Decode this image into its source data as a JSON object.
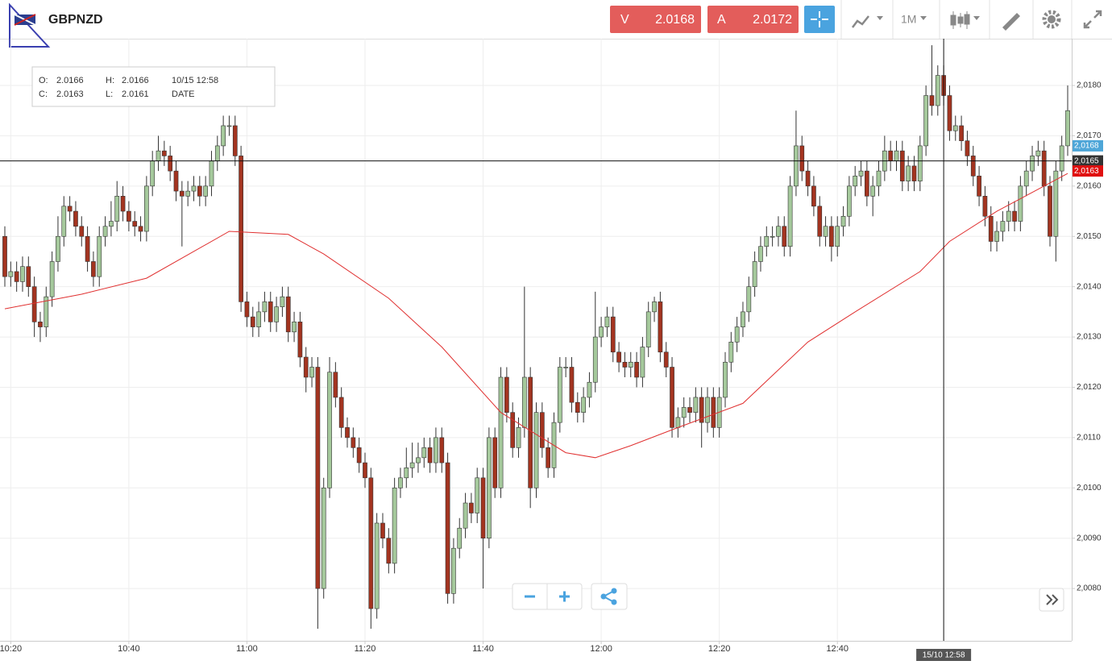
{
  "header": {
    "symbol": "GBPNZD",
    "bid_letter": "V",
    "bid": "2.0168",
    "ask_letter": "A",
    "ask": "2.0172",
    "timeframe": "1M"
  },
  "info": {
    "rows": [
      [
        "O:",
        "2.0166",
        "H:",
        "2.0166",
        "10/15 12:58"
      ],
      [
        "C:",
        "2.0163",
        "L:",
        "2.0161",
        "DATE"
      ]
    ]
  },
  "chart_data": {
    "type": "candlestick",
    "up_color": "#a5c99c",
    "down_color": "#a33420",
    "categories": [
      "10:19",
      "10:20",
      "10:21",
      "10:22",
      "10:23",
      "10:24",
      "10:25",
      "10:26",
      "10:27",
      "10:28",
      "10:29",
      "10:30",
      "10:31",
      "10:32",
      "10:33",
      "10:34",
      "10:35",
      "10:36",
      "10:37",
      "10:38",
      "10:39",
      "10:40",
      "10:41",
      "10:42",
      "10:43",
      "10:44",
      "10:45",
      "10:46",
      "10:47",
      "10:48",
      "10:49",
      "10:50",
      "10:51",
      "10:52",
      "10:53",
      "10:54",
      "10:55",
      "10:56",
      "10:57",
      "10:58",
      "10:59",
      "11:00",
      "11:01",
      "11:02",
      "11:03",
      "11:04",
      "11:05",
      "11:06",
      "11:07",
      "11:08",
      "11:09",
      "11:10",
      "11:11",
      "11:12",
      "11:13",
      "11:14",
      "11:15",
      "11:16",
      "11:17",
      "11:18",
      "11:19",
      "11:20",
      "11:21",
      "11:22",
      "11:23",
      "11:24",
      "11:25",
      "11:26",
      "11:27",
      "11:28",
      "11:29",
      "11:30",
      "11:31",
      "11:32",
      "11:33",
      "11:34",
      "11:35",
      "11:36",
      "11:37",
      "11:38",
      "11:39",
      "11:40",
      "11:41",
      "11:42",
      "11:43",
      "11:44",
      "11:45",
      "11:46",
      "11:47",
      "11:48",
      "11:49",
      "11:50",
      "11:51",
      "11:52",
      "11:53",
      "11:54",
      "11:55",
      "11:56",
      "11:57",
      "11:58",
      "11:59",
      "12:00",
      "12:01",
      "12:02",
      "12:03",
      "12:04",
      "12:05",
      "12:06",
      "12:07",
      "12:08",
      "12:09",
      "12:10",
      "12:11",
      "12:12",
      "12:13",
      "12:14",
      "12:15",
      "12:16",
      "12:17",
      "12:18",
      "12:19",
      "12:20",
      "12:21",
      "12:22",
      "12:23",
      "12:24",
      "12:25",
      "12:26",
      "12:27",
      "12:28",
      "12:29",
      "12:30",
      "12:31",
      "12:32",
      "12:33",
      "12:34",
      "12:35",
      "12:36",
      "12:37",
      "12:38",
      "12:39",
      "12:40",
      "12:41",
      "12:42",
      "12:43",
      "12:44",
      "12:45",
      "12:46",
      "12:47",
      "12:48",
      "12:49",
      "12:50",
      "12:51",
      "12:52",
      "12:53",
      "12:54",
      "12:55",
      "12:56",
      "12:57",
      "12:58",
      "12:59",
      "13:00",
      "13:01",
      "13:02",
      "13:03",
      "13:04",
      "13:05",
      "13:06",
      "13:07",
      "13:08",
      "13:09",
      "13:10",
      "13:11",
      "13:12",
      "13:13",
      "13:14",
      "13:15",
      "13:16",
      "13:17",
      "13:18",
      "13:19"
    ],
    "open": [
      2.015,
      2.0142,
      2.0143,
      2.0141,
      2.0144,
      2.014,
      2.0133,
      2.0132,
      2.0138,
      2.0145,
      2.015,
      2.0156,
      2.0155,
      2.0152,
      2.015,
      2.0145,
      2.0142,
      2.015,
      2.0152,
      2.0153,
      2.0158,
      2.0155,
      2.0153,
      2.0152,
      2.0151,
      2.016,
      2.0165,
      2.0167,
      2.0166,
      2.0163,
      2.0159,
      2.0158,
      2.0159,
      2.016,
      2.0158,
      2.016,
      2.0165,
      2.0168,
      2.0172,
      2.0172,
      2.0166,
      2.0137,
      2.0134,
      2.0132,
      2.0135,
      2.0137,
      2.0133,
      2.0136,
      2.0138,
      2.0131,
      2.0133,
      2.0126,
      2.0122,
      2.0124,
      2.008,
      2.01,
      2.0123,
      2.0118,
      2.0112,
      2.011,
      2.0108,
      2.0105,
      2.0102,
      2.0076,
      2.0093,
      2.009,
      2.0085,
      2.01,
      2.0102,
      2.0104,
      2.0105,
      2.0106,
      2.0108,
      2.0105,
      2.011,
      2.0105,
      2.0079,
      2.0088,
      2.0092,
      2.0097,
      2.0095,
      2.0102,
      2.009,
      2.011,
      2.01,
      2.0122,
      2.0115,
      2.0108,
      2.0112,
      2.0122,
      2.01,
      2.0115,
      2.0108,
      2.0104,
      2.0113,
      2.0124,
      2.0124,
      2.0117,
      2.0115,
      2.0118,
      2.0121,
      2.013,
      2.0132,
      2.0134,
      2.0127,
      2.0125,
      2.0124,
      2.0125,
      2.0122,
      2.0128,
      2.0135,
      2.0137,
      2.0127,
      2.0124,
      2.0112,
      2.0114,
      2.0116,
      2.0115,
      2.0118,
      2.0113,
      2.0118,
      2.0112,
      2.0118,
      2.0125,
      2.0129,
      2.0132,
      2.0135,
      2.014,
      2.0145,
      2.0148,
      2.015,
      2.015,
      2.0152,
      2.0148,
      2.016,
      2.0168,
      2.0163,
      2.016,
      2.0156,
      2.015,
      2.0152,
      2.0148,
      2.0152,
      2.0154,
      2.016,
      2.0162,
      2.0163,
      2.0158,
      2.016,
      2.0163,
      2.0167,
      2.0165,
      2.0167,
      2.0161,
      2.0164,
      2.0161,
      2.0168,
      2.0178,
      2.0176,
      2.0182,
      2.0178,
      2.0171,
      2.0172,
      2.0169,
      2.0166,
      2.0162,
      2.0158,
      2.0154,
      2.0149,
      2.0151,
      2.0153,
      2.0155,
      2.0153,
      2.016,
      2.0163,
      2.0166,
      2.0167,
      2.016,
      2.015,
      2.0163,
      2.0168
    ],
    "high": [
      2.0152,
      2.0145,
      2.0145,
      2.0146,
      2.0146,
      2.0142,
      2.0135,
      2.014,
      2.0147,
      2.0154,
      2.0158,
      2.0158,
      2.0157,
      2.0154,
      2.0152,
      2.0147,
      2.0152,
      2.0154,
      2.0157,
      2.0161,
      2.016,
      2.0157,
      2.0155,
      2.0154,
      2.0162,
      2.0167,
      2.017,
      2.0169,
      2.0168,
      2.0165,
      2.0161,
      2.0161,
      2.0162,
      2.0162,
      2.0162,
      2.0167,
      2.017,
      2.0174,
      2.0174,
      2.0174,
      2.0168,
      2.0139,
      2.0136,
      2.0137,
      2.0139,
      2.0139,
      2.0138,
      2.014,
      2.014,
      2.0135,
      2.0135,
      2.0128,
      2.0126,
      2.0126,
      2.0102,
      2.0126,
      2.0125,
      2.012,
      2.0114,
      2.0112,
      2.011,
      2.0107,
      2.0104,
      2.0095,
      2.0095,
      2.0092,
      2.0102,
      2.0104,
      2.0108,
      2.0109,
      2.0109,
      2.011,
      2.011,
      2.0112,
      2.0112,
      2.0107,
      2.009,
      2.0094,
      2.0099,
      2.0099,
      2.0104,
      2.0104,
      2.0112,
      2.0112,
      2.0124,
      2.0124,
      2.0117,
      2.0114,
      2.014,
      2.0124,
      2.0117,
      2.0117,
      2.011,
      2.0115,
      2.0126,
      2.0126,
      2.0126,
      2.0119,
      2.012,
      2.0123,
      2.0139,
      2.0134,
      2.0136,
      2.0136,
      2.0129,
      2.0127,
      2.0127,
      2.0127,
      2.013,
      2.0137,
      2.0138,
      2.0139,
      2.0129,
      2.0126,
      2.0116,
      2.0118,
      2.0118,
      2.012,
      2.012,
      2.012,
      2.012,
      2.012,
      2.0127,
      2.0131,
      2.0134,
      2.0137,
      2.0142,
      2.0147,
      2.015,
      2.0152,
      2.0152,
      2.0154,
      2.0154,
      2.0162,
      2.0175,
      2.017,
      2.0165,
      2.0162,
      2.0158,
      2.0154,
      2.0154,
      2.0154,
      2.0156,
      2.0162,
      2.0164,
      2.0165,
      2.0165,
      2.0162,
      2.0165,
      2.017,
      2.0169,
      2.0169,
      2.0169,
      2.0166,
      2.0166,
      2.017,
      2.018,
      2.0188,
      2.0184,
      2.0184,
      2.018,
      2.0174,
      2.0174,
      2.0171,
      2.0168,
      2.0164,
      2.016,
      2.0156,
      2.0153,
      2.0155,
      2.0157,
      2.0157,
      2.0162,
      2.0165,
      2.0168,
      2.0169,
      2.0169,
      2.0162,
      2.0165,
      2.017,
      2.018
    ],
    "low": [
      2.014,
      2.014,
      2.0139,
      2.0139,
      2.0138,
      2.013,
      2.0129,
      2.013,
      2.0136,
      2.0143,
      2.0148,
      2.0153,
      2.015,
      2.0148,
      2.0143,
      2.014,
      2.014,
      2.0148,
      2.015,
      2.0151,
      2.0153,
      2.0151,
      2.015,
      2.0149,
      2.0149,
      2.0158,
      2.0163,
      2.0164,
      2.0161,
      2.0157,
      2.0148,
      2.0156,
      2.0157,
      2.0156,
      2.0156,
      2.0158,
      2.0163,
      2.0166,
      2.017,
      2.0164,
      2.0135,
      2.0132,
      2.013,
      2.013,
      2.0133,
      2.0131,
      2.0131,
      2.0134,
      2.0129,
      2.0129,
      2.0124,
      2.0119,
      2.012,
      2.0072,
      2.0078,
      2.0098,
      2.0116,
      2.011,
      2.0108,
      2.0106,
      2.0103,
      2.01,
      2.0072,
      2.0074,
      2.0088,
      2.0083,
      2.0083,
      2.0098,
      2.01,
      2.0102,
      2.0103,
      2.0104,
      2.0103,
      2.0103,
      2.0103,
      2.0077,
      2.0077,
      2.0086,
      2.009,
      2.0093,
      2.0093,
      2.008,
      2.0088,
      2.0098,
      2.0098,
      2.0113,
      2.0106,
      2.0106,
      2.011,
      2.0096,
      2.0098,
      2.0106,
      2.0102,
      2.0102,
      2.0111,
      2.0122,
      2.0115,
      2.0113,
      2.0113,
      2.0116,
      2.0119,
      2.0128,
      2.013,
      2.0125,
      2.0123,
      2.0122,
      2.0122,
      2.012,
      2.012,
      2.0126,
      2.0133,
      2.0125,
      2.0122,
      2.011,
      2.011,
      2.0112,
      2.0113,
      2.0113,
      2.0108,
      2.0111,
      2.011,
      2.011,
      2.0116,
      2.0123,
      2.0127,
      2.013,
      2.0133,
      2.0138,
      2.0143,
      2.0146,
      2.0148,
      2.0148,
      2.0146,
      2.0146,
      2.0158,
      2.0161,
      2.0158,
      2.0154,
      2.0148,
      2.0148,
      2.0145,
      2.0146,
      2.015,
      2.0152,
      2.0158,
      2.016,
      2.0156,
      2.0154,
      2.0158,
      2.0161,
      2.0163,
      2.0163,
      2.0159,
      2.0159,
      2.0159,
      2.0159,
      2.0166,
      2.0174,
      2.0174,
      2.0176,
      2.0169,
      2.0169,
      2.0167,
      2.0164,
      2.016,
      2.0156,
      2.0152,
      2.0147,
      2.0147,
      2.0149,
      2.0151,
      2.0151,
      2.0151,
      2.0158,
      2.0161,
      2.0164,
      2.0158,
      2.0148,
      2.0145,
      2.0161,
      2.0166
    ],
    "close": [
      2.0142,
      2.0143,
      2.0141,
      2.0144,
      2.014,
      2.0133,
      2.0132,
      2.0138,
      2.0145,
      2.015,
      2.0156,
      2.0155,
      2.0152,
      2.015,
      2.0145,
      2.0142,
      2.015,
      2.0152,
      2.0153,
      2.0158,
      2.0155,
      2.0153,
      2.0152,
      2.0151,
      2.016,
      2.0165,
      2.0167,
      2.0166,
      2.0163,
      2.0159,
      2.0158,
      2.0159,
      2.016,
      2.0158,
      2.016,
      2.0165,
      2.0168,
      2.0172,
      2.0172,
      2.0166,
      2.0137,
      2.0134,
      2.0132,
      2.0135,
      2.0137,
      2.0133,
      2.0136,
      2.0138,
      2.0131,
      2.0133,
      2.0126,
      2.0122,
      2.0124,
      2.008,
      2.01,
      2.0123,
      2.0118,
      2.0112,
      2.011,
      2.0108,
      2.0105,
      2.0102,
      2.0076,
      2.0093,
      2.009,
      2.0085,
      2.01,
      2.0102,
      2.0104,
      2.0105,
      2.0106,
      2.0108,
      2.0105,
      2.011,
      2.0105,
      2.0079,
      2.0088,
      2.0092,
      2.0097,
      2.0095,
      2.0102,
      2.009,
      2.011,
      2.01,
      2.0122,
      2.0115,
      2.0108,
      2.0112,
      2.0122,
      2.01,
      2.0115,
      2.0108,
      2.0104,
      2.0113,
      2.0124,
      2.0124,
      2.0117,
      2.0115,
      2.0118,
      2.0121,
      2.013,
      2.0132,
      2.0134,
      2.0127,
      2.0125,
      2.0124,
      2.0125,
      2.0122,
      2.0128,
      2.0135,
      2.0137,
      2.0127,
      2.0124,
      2.0112,
      2.0114,
      2.0116,
      2.0115,
      2.0118,
      2.0113,
      2.0118,
      2.0112,
      2.0118,
      2.0125,
      2.0129,
      2.0132,
      2.0135,
      2.014,
      2.0145,
      2.0148,
      2.015,
      2.015,
      2.0152,
      2.0148,
      2.016,
      2.0168,
      2.0163,
      2.016,
      2.0156,
      2.015,
      2.0152,
      2.0148,
      2.0152,
      2.0154,
      2.016,
      2.0162,
      2.0163,
      2.0158,
      2.016,
      2.0163,
      2.0167,
      2.0165,
      2.0167,
      2.0161,
      2.0164,
      2.0161,
      2.0168,
      2.0178,
      2.0176,
      2.0182,
      2.0178,
      2.0171,
      2.0172,
      2.0169,
      2.0166,
      2.0162,
      2.0158,
      2.0154,
      2.0149,
      2.0151,
      2.0153,
      2.0155,
      2.0153,
      2.016,
      2.0163,
      2.0166,
      2.0167,
      2.016,
      2.015,
      2.0163,
      2.0168,
      2.0175
    ],
    "ma": {
      "color": "#e03030",
      "x": [
        "10:19",
        "10:32",
        "10:43",
        "10:57",
        "11:07",
        "11:13",
        "11:24",
        "11:33",
        "11:43",
        "11:54",
        "11:59",
        "12:05",
        "12:13",
        "12:24",
        "12:35",
        "12:43",
        "12:54",
        "12:59",
        "13:07",
        "13:19"
      ],
      "values": [
        2.01356,
        2.01385,
        2.01417,
        2.0151,
        2.01504,
        2.01465,
        2.01377,
        2.0128,
        2.0115,
        2.0107,
        2.0106,
        2.01084,
        2.0112,
        2.01168,
        2.0129,
        2.0135,
        2.0143,
        2.0149,
        2.0155,
        2.01625
      ]
    },
    "ylim": [
      2.00696,
      2.01893
    ],
    "yticks": [
      {
        "value": 2.008,
        "label": "2,0080"
      },
      {
        "value": 2.009,
        "label": "2,0090"
      },
      {
        "value": 2.01,
        "label": "2,0100"
      },
      {
        "value": 2.011,
        "label": "2,0110"
      },
      {
        "value": 2.012,
        "label": "2,0120"
      },
      {
        "value": 2.013,
        "label": "2,0130"
      },
      {
        "value": 2.014,
        "label": "2,0140"
      },
      {
        "value": 2.015,
        "label": "2,0150"
      },
      {
        "value": 2.016,
        "label": "2,0160"
      },
      {
        "value": 2.017,
        "label": "2,0170"
      },
      {
        "value": 2.018,
        "label": "2,0180"
      }
    ],
    "xticks": [
      "10:20",
      "10:40",
      "11:00",
      "11:20",
      "11:40",
      "12:00",
      "12:20",
      "12:40"
    ],
    "grid": true,
    "price_line": 2.0165,
    "price_markers": [
      {
        "value": 2.0168,
        "label": "2,0168",
        "color": "#4ea6d8"
      },
      {
        "value": 2.0165,
        "label": "2,0165",
        "color": "#333333"
      },
      {
        "value": 2.0163,
        "label": "2,0163",
        "color": "#e01010"
      }
    ],
    "crosshair": {
      "at": "12:58",
      "label": "15/10 12:58"
    }
  }
}
